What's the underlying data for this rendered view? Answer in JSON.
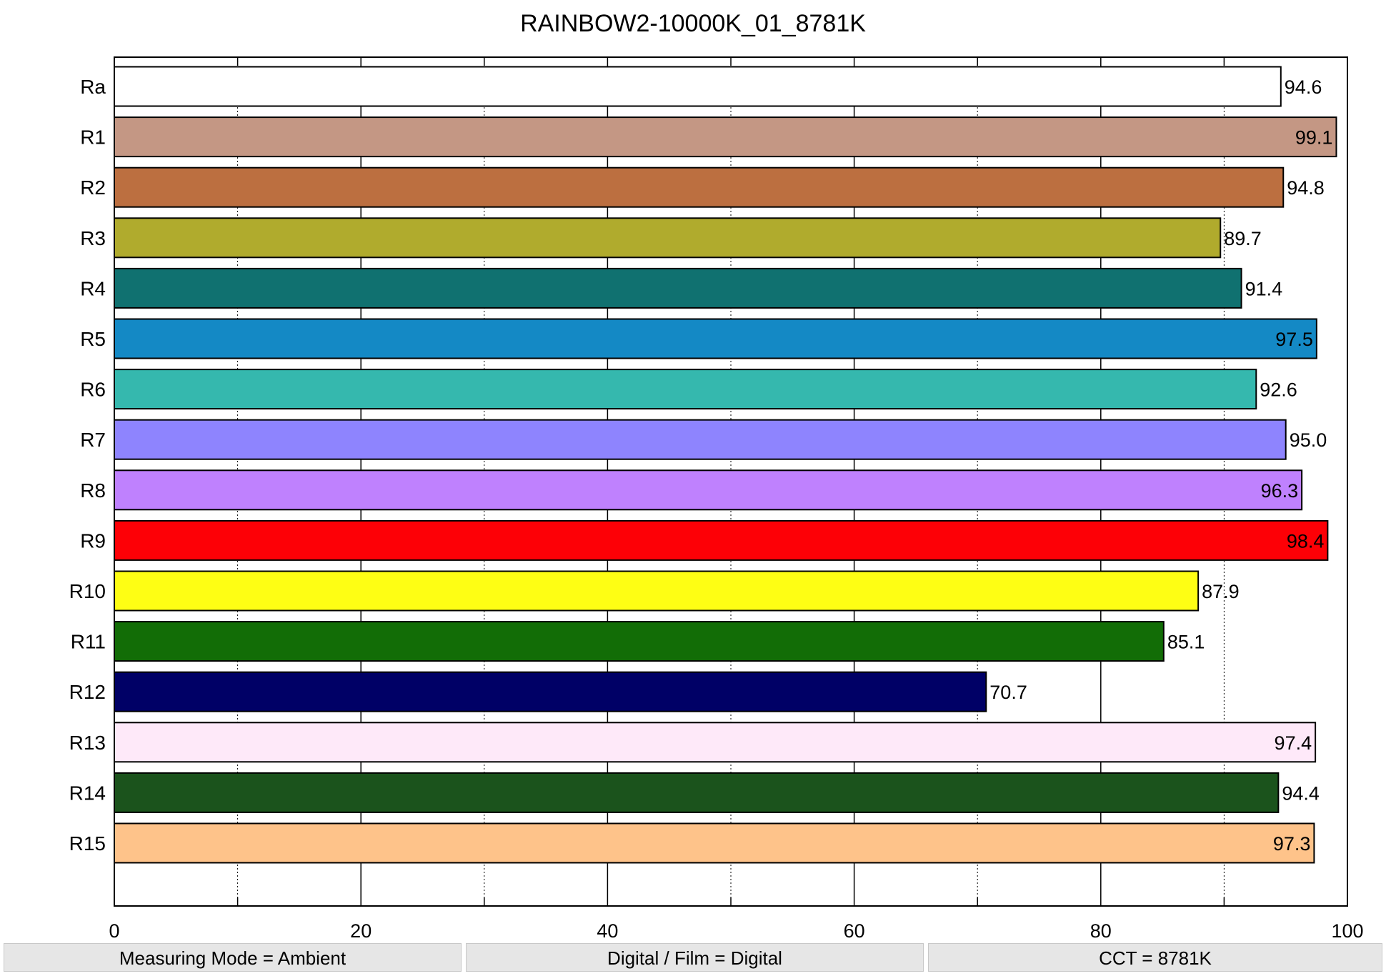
{
  "chart_data": {
    "type": "bar",
    "orientation": "horizontal",
    "title": "RAINBOW2-10000K_01_8781K",
    "xlim": [
      0,
      100
    ],
    "xticks": [
      "0",
      "20",
      "40",
      "60",
      "80",
      "100"
    ],
    "grid": "on",
    "categories": [
      "Ra",
      "R1",
      "R2",
      "R3",
      "R4",
      "R5",
      "R6",
      "R7",
      "R8",
      "R9",
      "R10",
      "R11",
      "R12",
      "R13",
      "R14",
      "R15"
    ],
    "values": [
      94.6,
      99.1,
      94.8,
      89.7,
      91.4,
      97.5,
      92.6,
      95.0,
      96.3,
      98.4,
      87.9,
      85.1,
      70.7,
      97.4,
      94.4,
      97.3
    ],
    "labels": [
      "94.6",
      "99.1",
      "94.8",
      "89.7",
      "91.4",
      "97.5",
      "92.6",
      "95.0",
      "96.3",
      "98.4",
      "87.9",
      "85.1",
      "70.7",
      "97.4",
      "94.4",
      "97.3"
    ],
    "colors": [
      "#ffffff",
      "#c49784",
      "#bc6f40",
      "#b0ab2d",
      "#107170",
      "#1489c5",
      "#35b8ae",
      "#8e84fe",
      "#bf81fe",
      "#fd0006",
      "#fefe14",
      "#126d06",
      "#000066",
      "#fee9f9",
      "#1b531c",
      "#fec38a"
    ]
  },
  "footer": {
    "measuring_mode": "Measuring Mode = Ambient",
    "digital_film": "Digital / Film = Digital",
    "cct": "CCT = 8781K"
  }
}
